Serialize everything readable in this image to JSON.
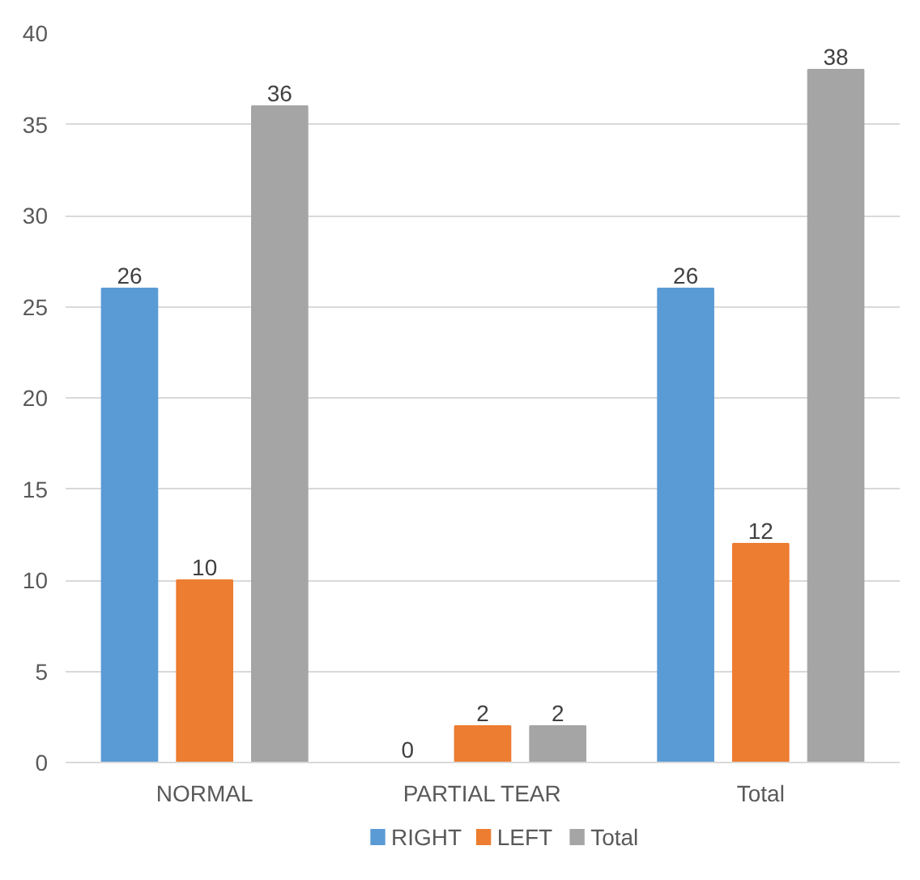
{
  "chart_data": {
    "type": "bar",
    "categories": [
      "NORMAL",
      "PARTIAL TEAR",
      "Total"
    ],
    "series": [
      {
        "name": "RIGHT",
        "color": "#5b9bd5",
        "values": [
          26,
          0,
          26
        ]
      },
      {
        "name": "LEFT",
        "color": "#ed7d31",
        "values": [
          10,
          2,
          12
        ]
      },
      {
        "name": "Total",
        "color": "#a5a5a5",
        "values": [
          36,
          2,
          38
        ]
      }
    ],
    "ylim": [
      0,
      40
    ],
    "yticks": [
      0,
      5,
      10,
      15,
      20,
      25,
      30,
      35,
      40
    ],
    "grid": "y",
    "legend": "bottom",
    "data_labels": true
  }
}
